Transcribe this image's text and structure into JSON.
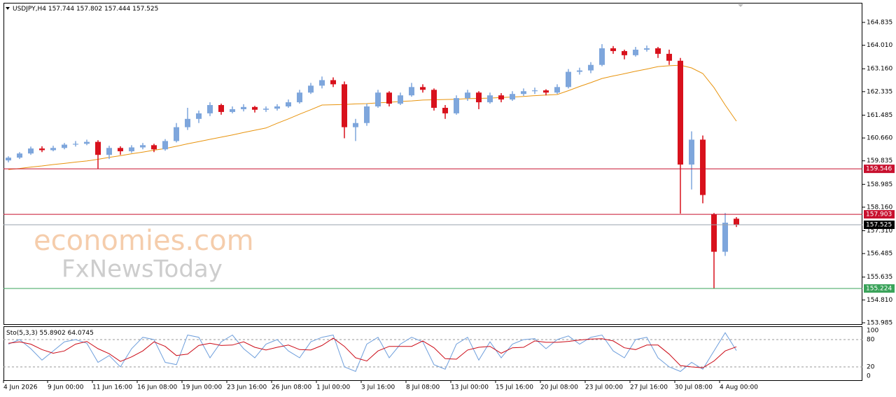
{
  "chart_data": [
    {
      "type": "candlestick",
      "symbol": "USDJPY,H4",
      "bull_color": "#7ea6dc",
      "bear_color": "#d8111c",
      "candles": [
        [
          159.85,
          160.0,
          159.78,
          159.95
        ],
        [
          159.95,
          160.15,
          159.9,
          160.1
        ],
        [
          160.1,
          160.35,
          160.05,
          160.28
        ],
        [
          160.28,
          160.36,
          160.15,
          160.22
        ],
        [
          160.22,
          160.38,
          160.18,
          160.3
        ],
        [
          160.3,
          160.48,
          160.25,
          160.42
        ],
        [
          160.42,
          160.55,
          160.35,
          160.45
        ],
        [
          160.45,
          160.6,
          160.4,
          160.52
        ],
        [
          160.52,
          160.58,
          159.55,
          160.05
        ],
        [
          160.05,
          160.38,
          159.9,
          160.3
        ],
        [
          160.3,
          160.36,
          160.05,
          160.18
        ],
        [
          160.18,
          160.4,
          160.12,
          160.32
        ],
        [
          160.32,
          160.48,
          160.25,
          160.4
        ],
        [
          160.4,
          160.45,
          160.15,
          160.25
        ],
        [
          160.25,
          160.62,
          160.2,
          160.55
        ],
        [
          160.55,
          161.2,
          160.5,
          161.05
        ],
        [
          161.05,
          161.75,
          160.95,
          161.35
        ],
        [
          161.35,
          161.65,
          161.2,
          161.55
        ],
        [
          161.55,
          161.95,
          161.45,
          161.85
        ],
        [
          161.85,
          161.9,
          161.5,
          161.6
        ],
        [
          161.6,
          161.8,
          161.55,
          161.7
        ],
        [
          161.7,
          161.88,
          161.62,
          161.78
        ],
        [
          161.78,
          161.82,
          161.58,
          161.68
        ],
        [
          161.68,
          161.8,
          161.6,
          161.72
        ],
        [
          161.72,
          161.88,
          161.65,
          161.8
        ],
        [
          161.8,
          162.05,
          161.75,
          161.95
        ],
        [
          161.95,
          162.4,
          161.9,
          162.3
        ],
        [
          162.3,
          162.65,
          162.25,
          162.55
        ],
        [
          162.55,
          162.88,
          162.45,
          162.75
        ],
        [
          162.75,
          162.85,
          162.5,
          162.6
        ],
        [
          162.6,
          162.7,
          160.65,
          161.05
        ],
        [
          161.05,
          161.35,
          160.55,
          161.2
        ],
        [
          161.2,
          161.9,
          161.1,
          161.8
        ],
        [
          161.8,
          162.4,
          161.75,
          162.3
        ],
        [
          162.3,
          162.35,
          161.8,
          161.9
        ],
        [
          161.9,
          162.3,
          161.85,
          162.2
        ],
        [
          162.2,
          162.65,
          162.15,
          162.5
        ],
        [
          162.5,
          162.6,
          162.3,
          162.4
        ],
        [
          162.4,
          162.45,
          161.65,
          161.75
        ],
        [
          161.75,
          161.85,
          161.35,
          161.55
        ],
        [
          161.55,
          162.2,
          161.5,
          162.1
        ],
        [
          162.1,
          162.4,
          162.0,
          162.3
        ],
        [
          162.3,
          162.35,
          161.7,
          161.95
        ],
        [
          161.95,
          162.3,
          161.9,
          162.2
        ],
        [
          162.2,
          162.28,
          161.95,
          162.05
        ],
        [
          162.05,
          162.35,
          162.0,
          162.25
        ],
        [
          162.25,
          162.45,
          162.18,
          162.35
        ],
        [
          162.35,
          162.48,
          162.25,
          162.38
        ],
        [
          162.38,
          162.42,
          162.2,
          162.3
        ],
        [
          162.3,
          162.6,
          162.25,
          162.5
        ],
        [
          162.5,
          163.15,
          162.45,
          163.05
        ],
        [
          163.05,
          163.2,
          162.95,
          163.1
        ],
        [
          163.1,
          163.4,
          163.0,
          163.3
        ],
        [
          163.3,
          164.05,
          163.25,
          163.9
        ],
        [
          163.9,
          163.98,
          163.7,
          163.8
        ],
        [
          163.8,
          163.85,
          163.5,
          163.65
        ],
        [
          163.65,
          163.95,
          163.6,
          163.85
        ],
        [
          163.85,
          164.0,
          163.78,
          163.9
        ],
        [
          163.9,
          163.95,
          163.55,
          163.7
        ],
        [
          163.7,
          163.85,
          163.3,
          163.45
        ],
        [
          163.45,
          163.55,
          157.93,
          159.7
        ],
        [
          159.7,
          160.9,
          158.8,
          160.6
        ],
        [
          160.6,
          160.75,
          158.3,
          158.6
        ],
        [
          157.9,
          157.95,
          155.22,
          156.55
        ],
        [
          156.55,
          157.95,
          156.4,
          157.6
        ],
        [
          157.744,
          157.802,
          157.444,
          157.525
        ]
      ],
      "ma_color": "#e8940e",
      "ma_values": [
        159.52,
        159.56,
        159.61,
        159.65,
        159.7,
        159.74,
        159.79,
        159.83,
        159.89,
        159.96,
        160.02,
        160.09,
        160.15,
        160.22,
        160.28,
        160.36,
        160.45,
        160.53,
        160.61,
        160.69,
        160.77,
        160.86,
        160.94,
        161.02,
        161.19,
        161.35,
        161.52,
        161.68,
        161.85,
        161.86,
        161.87,
        161.89,
        161.9,
        161.93,
        161.95,
        161.98,
        162.0,
        162.03,
        162.04,
        162.05,
        162.06,
        162.08,
        162.09,
        162.1,
        162.12,
        162.14,
        162.16,
        162.19,
        162.21,
        162.23,
        162.37,
        162.52,
        162.66,
        162.81,
        162.9,
        162.98,
        163.07,
        163.15,
        163.24,
        163.27,
        163.29,
        163.19,
        162.99,
        162.48,
        161.85,
        161.27
      ],
      "xlim": [
        -0.4375,
        76.25
      ],
      "xticks": [
        {
          "value": -0.5,
          "label": "4 Jun 2026"
        },
        {
          "value": 3.5,
          "label": "9 Jun 00:00"
        },
        {
          "value": 7.5,
          "label": "11 Jun 16:00"
        },
        {
          "value": 11.5,
          "label": "16 Jun 08:00"
        },
        {
          "value": 15.5,
          "label": "19 Jun 00:00"
        },
        {
          "value": 19.5,
          "label": "23 Jun 16:00"
        },
        {
          "value": 23.5,
          "label": "26 Jun 08:00"
        },
        {
          "value": 27.5,
          "label": "1 Jul 00:00"
        },
        {
          "value": 31.5,
          "label": "3 Jul 16:00"
        },
        {
          "value": 35.5,
          "label": "8 Jul 08:00"
        },
        {
          "value": 39.5,
          "label": "13 Jul 00:00"
        },
        {
          "value": 43.5,
          "label": "15 Jul 16:00"
        },
        {
          "value": 47.5,
          "label": "20 Jul 08:00"
        },
        {
          "value": 51.5,
          "label": "23 Jul 00:00"
        },
        {
          "value": 55.5,
          "label": "27 Jul 16:00"
        },
        {
          "value": 59.5,
          "label": "30 Jul 08:00"
        },
        {
          "value": 63.5,
          "label": "4 Aug 00:00"
        }
      ],
      "ylim": [
        153.934,
        165.518
      ],
      "yticks": [
        164.835,
        {
          "value": 164.01,
          "label": "164.010"
        },
        {
          "value": 163.16,
          "label": "163.160"
        },
        162.335,
        161.485,
        {
          "value": 160.66,
          "label": "160.660"
        },
        159.835,
        158.985,
        {
          "value": 158.16,
          "label": "158.160"
        },
        {
          "value": 157.31,
          "label": "157.310"
        },
        156.485,
        155.635,
        {
          "value": 154.81,
          "label": "154.810"
        },
        153.985
      ],
      "levels": [
        {
          "value": 159.546,
          "color": "#c8102e"
        },
        {
          "value": 157.903,
          "color": "#c8102e"
        },
        {
          "value": 157.525,
          "color": "#000000"
        },
        {
          "value": 155.224,
          "color": "#3aa35a"
        }
      ],
      "watermark": [
        "economies.com",
        "FxNewsToday"
      ]
    },
    {
      "type": "line",
      "title": "Sto(5,3,3)",
      "series": [
        {
          "color": "#6f9fdc",
          "values": [
            70,
            80,
            60,
            35,
            55,
            75,
            80,
            72,
            30,
            45,
            20,
            60,
            85,
            80,
            30,
            25,
            90,
            85,
            40,
            75,
            90,
            60,
            40,
            70,
            80,
            55,
            40,
            75,
            85,
            90,
            20,
            10,
            70,
            85,
            40,
            70,
            85,
            75,
            25,
            15,
            70,
            85,
            35,
            75,
            40,
            70,
            80,
            82,
            60,
            80,
            88,
            70,
            85,
            90,
            55,
            40,
            80,
            85,
            40,
            20,
            10,
            30,
            15,
            55,
            95,
            55.8902
          ]
        },
        {
          "color": "#cc0b17",
          "values": [
            72,
            75,
            70,
            58,
            50,
            55,
            70,
            76,
            60,
            49,
            32,
            42,
            55,
            75,
            65,
            45,
            48,
            67,
            72,
            67,
            68,
            75,
            63,
            57,
            63,
            68,
            58,
            57,
            67,
            83,
            65,
            40,
            33,
            55,
            65,
            65,
            65,
            77,
            62,
            38,
            37,
            57,
            63,
            65,
            50,
            62,
            63,
            77,
            74,
            74,
            76,
            79,
            81,
            82,
            77,
            62,
            58,
            68,
            68,
            48,
            23,
            20,
            18,
            33,
            55,
            64.0745
          ]
        }
      ],
      "ylim": [
        -9.2,
        109.2
      ],
      "yticks": [
        0,
        20,
        80,
        100
      ],
      "levels": [
        20,
        80
      ]
    }
  ]
}
